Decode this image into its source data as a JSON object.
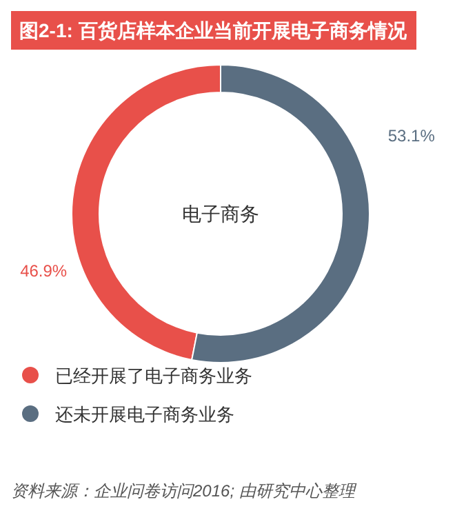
{
  "chart_data": {
    "type": "donut",
    "title": "图2-1: 百货店样本企业当前开展电子商务情况",
    "categories": [
      "已经开展了电子商务业务",
      "还未开展电子商务业务"
    ],
    "values": [
      46.9,
      53.1
    ],
    "colors": [
      "#e8504a",
      "#5a6e81"
    ],
    "value_labels": [
      "46.9%",
      "53.1%"
    ],
    "legend": "bottom",
    "annotations": [
      "电子商务",
      "资料来源：企业问卷访问2016; 由研究中心整理"
    ]
  }
}
